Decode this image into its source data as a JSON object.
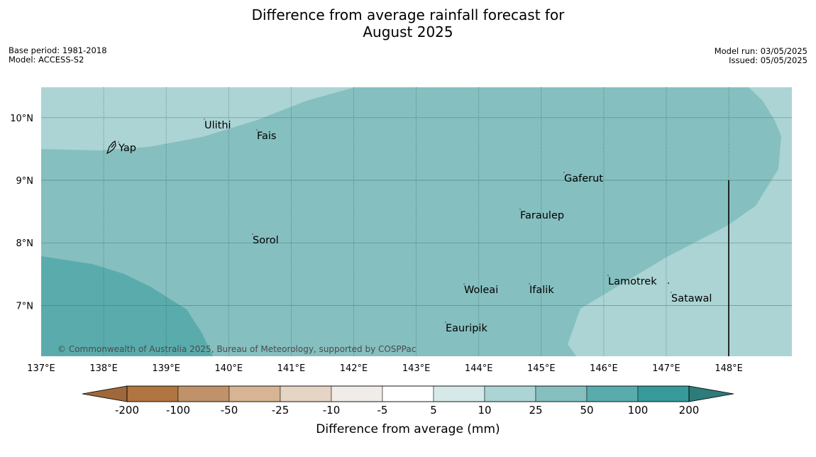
{
  "title_line1": "Difference from average rainfall forecast for",
  "title_line2": "August 2025",
  "base_period": "Base period: 1981-2018",
  "model": "Model: ACCESS-S2",
  "model_run": "Model run: 03/05/2025",
  "issued": "Issued: 05/05/2025",
  "copyright": "© Commonwealth of Australia 2025, Bureau of Meteorology, supported by COSPPac",
  "lon_labels": [
    "137°E",
    "138°E",
    "139°E",
    "140°E",
    "141°E",
    "142°E",
    "143°E",
    "144°E",
    "145°E",
    "146°E",
    "147°E",
    "148°E"
  ],
  "lat_labels": [
    "10°N",
    "9°N",
    "8°N",
    "7°N"
  ],
  "places": [
    {
      "name": "Yap"
    },
    {
      "name": "Ulithi"
    },
    {
      "name": "Fais"
    },
    {
      "name": "Gaferut"
    },
    {
      "name": "Faraulep"
    },
    {
      "name": "Sorol"
    },
    {
      "name": "Woleai"
    },
    {
      "name": "Ifalik"
    },
    {
      "name": "Lamotrek"
    },
    {
      "name": "Satawal"
    },
    {
      "name": "Eauripik"
    }
  ],
  "colorbar": {
    "labels": [
      "-200",
      "-100",
      "-50",
      "-25",
      "-10",
      "-5",
      "5",
      "10",
      "25",
      "50",
      "100",
      "200"
    ],
    "colors": [
      "#a0683a",
      "#b07540",
      "#c0926a",
      "#d6b494",
      "#e6d4c4",
      "#f0ece8",
      "#ffffff",
      "#d4e9e8",
      "#acd4d4",
      "#86bfbf",
      "#5aacac",
      "#369a9a",
      "#2e7b7b"
    ],
    "title": "Difference from average (mm)"
  }
}
